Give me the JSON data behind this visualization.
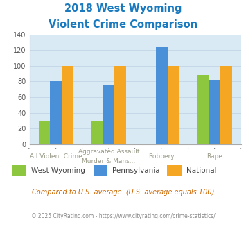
{
  "title_line1": "2018 West Wyoming",
  "title_line2": "Violent Crime Comparison",
  "title_color": "#1a7abf",
  "series": {
    "West Wyoming": {
      "values": [
        30,
        30,
        null,
        88
      ],
      "color": "#8dc63f"
    },
    "Pennsylvania": {
      "values": [
        80,
        76,
        124,
        82
      ],
      "color": "#4a90d9"
    },
    "National": {
      "values": [
        100,
        100,
        100,
        100
      ],
      "color": "#f5a623"
    }
  },
  "ylim": [
    0,
    140
  ],
  "yticks": [
    0,
    20,
    40,
    60,
    80,
    100,
    120,
    140
  ],
  "grid_color": "#c5d8e8",
  "plot_bg_color": "#daeaf5",
  "legend_labels": [
    "West Wyoming",
    "Pennsylvania",
    "National"
  ],
  "legend_colors": [
    "#8dc63f",
    "#4a90d9",
    "#f5a623"
  ],
  "top_xlabels": [
    "",
    "Aggravated Assault",
    "",
    ""
  ],
  "bot_xlabels": [
    "All Violent Crime",
    "Murder & Mans...",
    "Robbery",
    "Rape"
  ],
  "footnote1": "Compared to U.S. average. (U.S. average equals 100)",
  "footnote1_color": "#cc6600",
  "footnote2": "© 2025 CityRating.com - https://www.cityrating.com/crime-statistics/",
  "footnote2_color": "#888888",
  "bar_width": 0.22
}
